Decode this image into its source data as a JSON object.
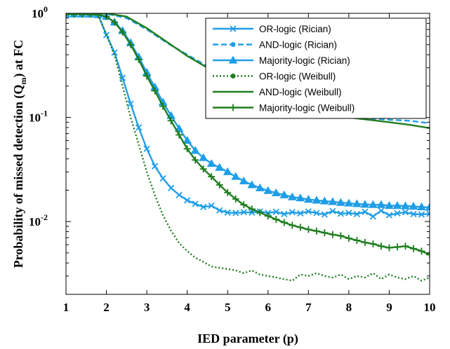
{
  "chart_data": {
    "type": "line",
    "title": "",
    "xlabel": "IED parameter (p)",
    "ylabel": "Probability of missed detection (Q",
    "ylabel_sub": "m",
    "ylabel_tail": ") at FC",
    "xlim": [
      1,
      10
    ],
    "ylim": [
      0.002,
      1
    ],
    "yscale": "log",
    "grid": false,
    "legend_position": "top-right",
    "x_ticks": [
      "1",
      "2",
      "3",
      "4",
      "5",
      "6",
      "7",
      "8",
      "9",
      "10"
    ],
    "y_ticks": [
      {
        "value": 1,
        "base": "10",
        "exp": "0"
      },
      {
        "value": 0.1,
        "base": "10",
        "exp": "-1"
      },
      {
        "value": 0.01,
        "base": "10",
        "exp": "-2"
      }
    ],
    "colors": {
      "blue": "#1f9ee8",
      "green": "#1e7d1e"
    },
    "series": [
      {
        "name": "OR-logic (Rician)",
        "color": "#1f9ee8",
        "dash": "solid",
        "marker": "x",
        "x": [
          1.0,
          1.2,
          1.4,
          1.6,
          1.8,
          2.0,
          2.2,
          2.4,
          2.6,
          2.8,
          3.0,
          3.2,
          3.4,
          3.6,
          3.8,
          4.0,
          4.2,
          4.4,
          4.6,
          4.8,
          5.0,
          5.2,
          5.4,
          5.6,
          5.8,
          6.0,
          6.2,
          6.4,
          6.6,
          6.8,
          7.0,
          7.2,
          7.4,
          7.6,
          7.8,
          8.0,
          8.2,
          8.4,
          8.6,
          8.8,
          9.0,
          9.2,
          9.4,
          9.6,
          9.8,
          10.0
        ],
        "y": [
          0.98,
          0.98,
          0.98,
          0.97,
          0.96,
          0.62,
          0.42,
          0.24,
          0.135,
          0.08,
          0.05,
          0.034,
          0.026,
          0.021,
          0.018,
          0.016,
          0.0148,
          0.0138,
          0.0142,
          0.0128,
          0.0122,
          0.0121,
          0.0123,
          0.0122,
          0.0125,
          0.0121,
          0.0124,
          0.0118,
          0.0123,
          0.012,
          0.0125,
          0.0121,
          0.0117,
          0.0126,
          0.0119,
          0.0121,
          0.0118,
          0.0124,
          0.0112,
          0.0127,
          0.0115,
          0.012,
          0.0123,
          0.0118,
          0.0117,
          0.0119
        ]
      },
      {
        "name": "AND-logic (Rician)",
        "color": "#1f9ee8",
        "dash": "dashed",
        "marker": "none",
        "x": [
          1.0,
          1.5,
          2.0,
          2.5,
          3.0,
          3.5,
          4.0,
          4.5,
          5.0,
          5.5,
          6.0,
          6.5,
          7.0,
          7.5,
          8.0,
          8.5,
          9.0,
          9.5,
          10.0
        ],
        "y": [
          1.0,
          1.0,
          0.99,
          0.9,
          0.7,
          0.52,
          0.4,
          0.31,
          0.24,
          0.19,
          0.155,
          0.135,
          0.12,
          0.11,
          0.103,
          0.098,
          0.095,
          0.093,
          0.088
        ]
      },
      {
        "name": "Majority-logic (Rician)",
        "color": "#1f9ee8",
        "dash": "solid",
        "marker": "triangle",
        "x": [
          1.0,
          1.2,
          1.4,
          1.6,
          1.8,
          2.0,
          2.2,
          2.4,
          2.6,
          2.8,
          3.0,
          3.2,
          3.4,
          3.6,
          3.8,
          4.0,
          4.2,
          4.4,
          4.6,
          4.8,
          5.0,
          5.2,
          5.4,
          5.6,
          5.8,
          6.0,
          6.2,
          6.4,
          6.6,
          6.8,
          7.0,
          7.2,
          7.4,
          7.6,
          7.8,
          8.0,
          8.2,
          8.4,
          8.6,
          8.8,
          9.0,
          9.2,
          9.4,
          9.6,
          9.8,
          10.0
        ],
        "y": [
          0.98,
          0.98,
          0.98,
          0.98,
          0.97,
          0.93,
          0.82,
          0.68,
          0.52,
          0.38,
          0.27,
          0.195,
          0.14,
          0.104,
          0.078,
          0.06,
          0.048,
          0.041,
          0.036,
          0.033,
          0.03,
          0.027,
          0.0245,
          0.0225,
          0.021,
          0.0198,
          0.0188,
          0.018,
          0.0172,
          0.0168,
          0.0163,
          0.016,
          0.0157,
          0.0155,
          0.0152,
          0.015,
          0.0148,
          0.0146,
          0.0145,
          0.0145,
          0.0142,
          0.0142,
          0.0141,
          0.014,
          0.0138,
          0.0137
        ]
      },
      {
        "name": "OR-logic (Weibull)",
        "color": "#1e7d1e",
        "dash": "dotted",
        "marker": "none",
        "x": [
          1.0,
          1.2,
          1.4,
          1.6,
          1.8,
          2.0,
          2.2,
          2.4,
          2.6,
          2.8,
          3.0,
          3.2,
          3.4,
          3.6,
          3.8,
          4.0,
          4.2,
          4.4,
          4.6,
          4.8,
          5.0,
          5.2,
          5.4,
          5.6,
          5.8,
          6.0,
          6.2,
          6.4,
          6.6,
          6.8,
          7.0,
          7.2,
          7.4,
          7.6,
          7.8,
          8.0,
          8.2,
          8.4,
          8.6,
          8.8,
          9.0,
          9.2,
          9.4,
          9.6,
          9.8,
          10.0
        ],
        "y": [
          0.98,
          0.98,
          0.98,
          0.97,
          0.96,
          0.62,
          0.4,
          0.2,
          0.1,
          0.055,
          0.03,
          0.018,
          0.0115,
          0.0082,
          0.0062,
          0.0052,
          0.0045,
          0.0041,
          0.0037,
          0.0036,
          0.0035,
          0.0034,
          0.0032,
          0.0034,
          0.0031,
          0.003,
          0.0029,
          0.0028,
          0.0027,
          0.0031,
          0.003,
          0.0032,
          0.003,
          0.0029,
          0.0031,
          0.0028,
          0.003,
          0.0029,
          0.0032,
          0.0028,
          0.0031,
          0.0029,
          0.0028,
          0.003,
          0.0027,
          0.0029
        ]
      },
      {
        "name": "AND-logic (Weibull)",
        "color": "#1e7d1e",
        "dash": "solid",
        "marker": "none",
        "x": [
          1.0,
          1.5,
          2.0,
          2.5,
          3.0,
          3.5,
          4.0,
          4.5,
          5.0,
          5.5,
          6.0,
          6.5,
          7.0,
          7.5,
          8.0,
          8.5,
          9.0,
          9.5,
          10.0
        ],
        "y": [
          1.0,
          1.0,
          1.0,
          0.93,
          0.72,
          0.53,
          0.39,
          0.3,
          0.23,
          0.18,
          0.15,
          0.128,
          0.115,
          0.106,
          0.1,
          0.095,
          0.09,
          0.085,
          0.079
        ]
      },
      {
        "name": "Majority-logic (Weibull)",
        "color": "#1e7d1e",
        "dash": "solid",
        "marker": "plus",
        "x": [
          1.0,
          1.2,
          1.4,
          1.6,
          1.8,
          2.0,
          2.2,
          2.4,
          2.6,
          2.8,
          3.0,
          3.2,
          3.4,
          3.6,
          3.8,
          4.0,
          4.2,
          4.4,
          4.6,
          4.8,
          5.0,
          5.2,
          5.4,
          5.6,
          5.8,
          6.0,
          6.2,
          6.4,
          6.6,
          6.8,
          7.0,
          7.2,
          7.4,
          7.6,
          7.8,
          8.0,
          8.2,
          8.4,
          8.6,
          8.8,
          9.0,
          9.2,
          9.4,
          9.6,
          9.8,
          10.0
        ],
        "y": [
          0.98,
          0.98,
          0.98,
          0.98,
          0.97,
          0.93,
          0.82,
          0.66,
          0.5,
          0.36,
          0.25,
          0.18,
          0.128,
          0.093,
          0.068,
          0.05,
          0.039,
          0.032,
          0.027,
          0.0225,
          0.019,
          0.0165,
          0.0145,
          0.0132,
          0.0122,
          0.0113,
          0.0105,
          0.0098,
          0.0092,
          0.0088,
          0.0084,
          0.0081,
          0.0078,
          0.0075,
          0.0073,
          0.0069,
          0.0066,
          0.0063,
          0.0061,
          0.0058,
          0.0056,
          0.0057,
          0.0058,
          0.0055,
          0.0052,
          0.0048
        ]
      }
    ]
  }
}
